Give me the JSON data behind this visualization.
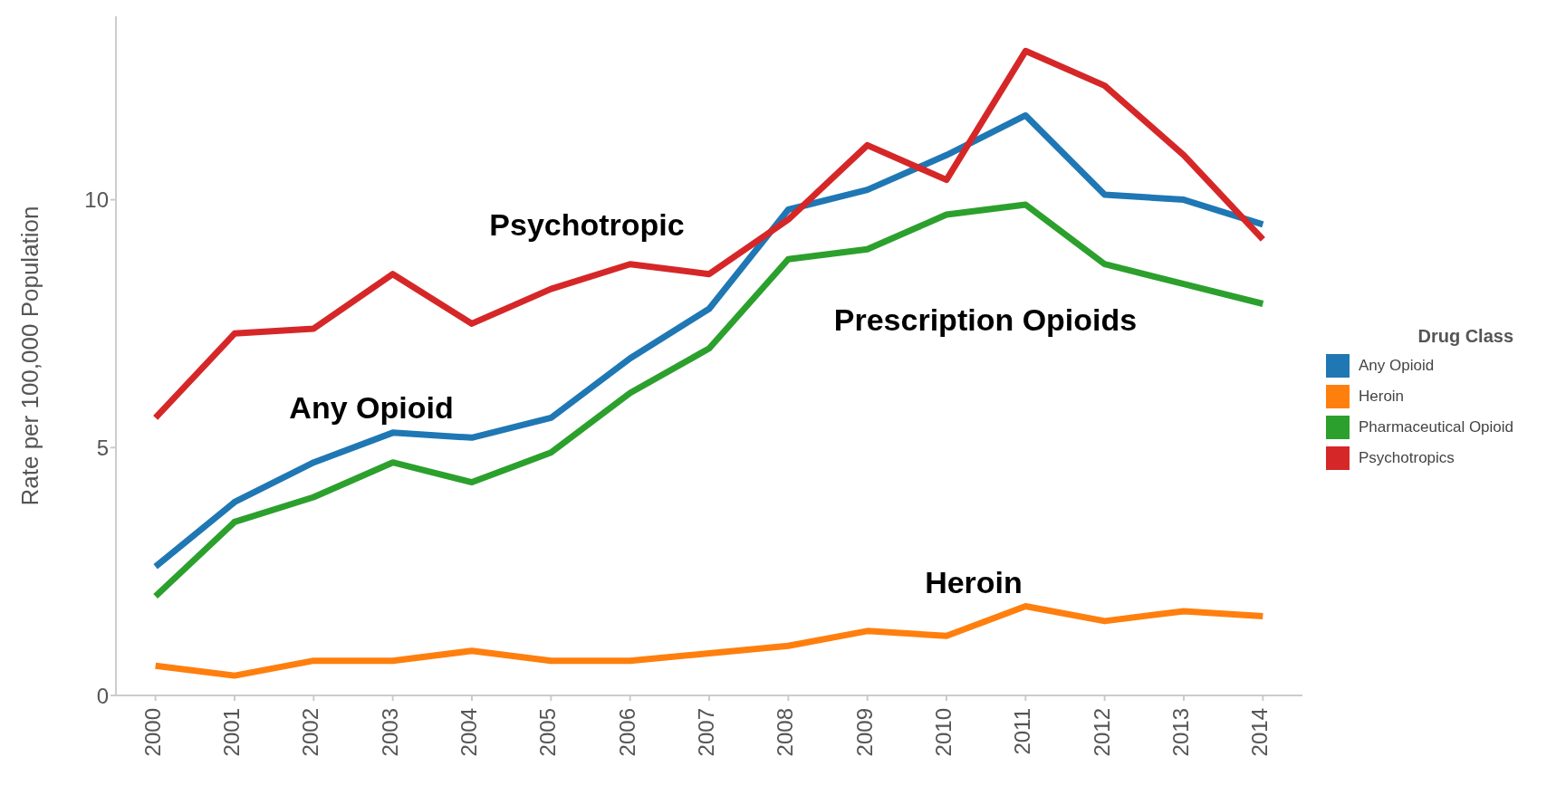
{
  "chart_data": {
    "type": "line",
    "ylabel": "Rate per 100,000 Population",
    "legend_title": "Drug Class",
    "x": [
      2000,
      2001,
      2002,
      2003,
      2004,
      2005,
      2006,
      2007,
      2008,
      2009,
      2010,
      2011,
      2012,
      2013,
      2014
    ],
    "xlim": [
      1999.5,
      2014.5
    ],
    "xticks": [
      2000,
      2001,
      2002,
      2003,
      2004,
      2005,
      2006,
      2007,
      2008,
      2009,
      2010,
      2011,
      2012,
      2013,
      2014
    ],
    "ylim": [
      0,
      13.7
    ],
    "yticks": [
      0,
      5,
      10
    ],
    "series": [
      {
        "name": "Any Opioid",
        "color": "#1f77b4",
        "values": [
          2.6,
          3.9,
          4.7,
          5.3,
          5.2,
          5.6,
          6.8,
          7.8,
          9.8,
          10.2,
          10.9,
          11.7,
          10.1,
          10.0,
          9.5
        ]
      },
      {
        "name": "Heroin",
        "color": "#ff7f0e",
        "values": [
          0.6,
          0.4,
          0.7,
          0.7,
          0.9,
          0.7,
          0.7,
          0.85,
          1.0,
          1.3,
          1.2,
          1.8,
          1.5,
          1.7,
          1.6
        ]
      },
      {
        "name": "Pharmaceutical Opioid",
        "color": "#2ca02c",
        "values": [
          2.0,
          3.5,
          4.0,
          4.7,
          4.3,
          4.9,
          6.1,
          7.0,
          8.8,
          9.0,
          9.7,
          9.9,
          8.7,
          8.3,
          7.9
        ]
      },
      {
        "name": "Psychotropics",
        "color": "#d62728",
        "values": [
          5.6,
          7.3,
          7.4,
          8.5,
          7.5,
          8.2,
          8.7,
          8.5,
          9.6,
          11.1,
          10.4,
          13.0,
          12.3,
          10.9,
          9.2
        ]
      }
    ],
    "annotations": [
      "Psychotropic",
      "Any Opioid",
      "Prescription Opioids",
      "Heroin"
    ],
    "legend": "right",
    "grid": false,
    "marker": "none",
    "line_style": "solid"
  }
}
